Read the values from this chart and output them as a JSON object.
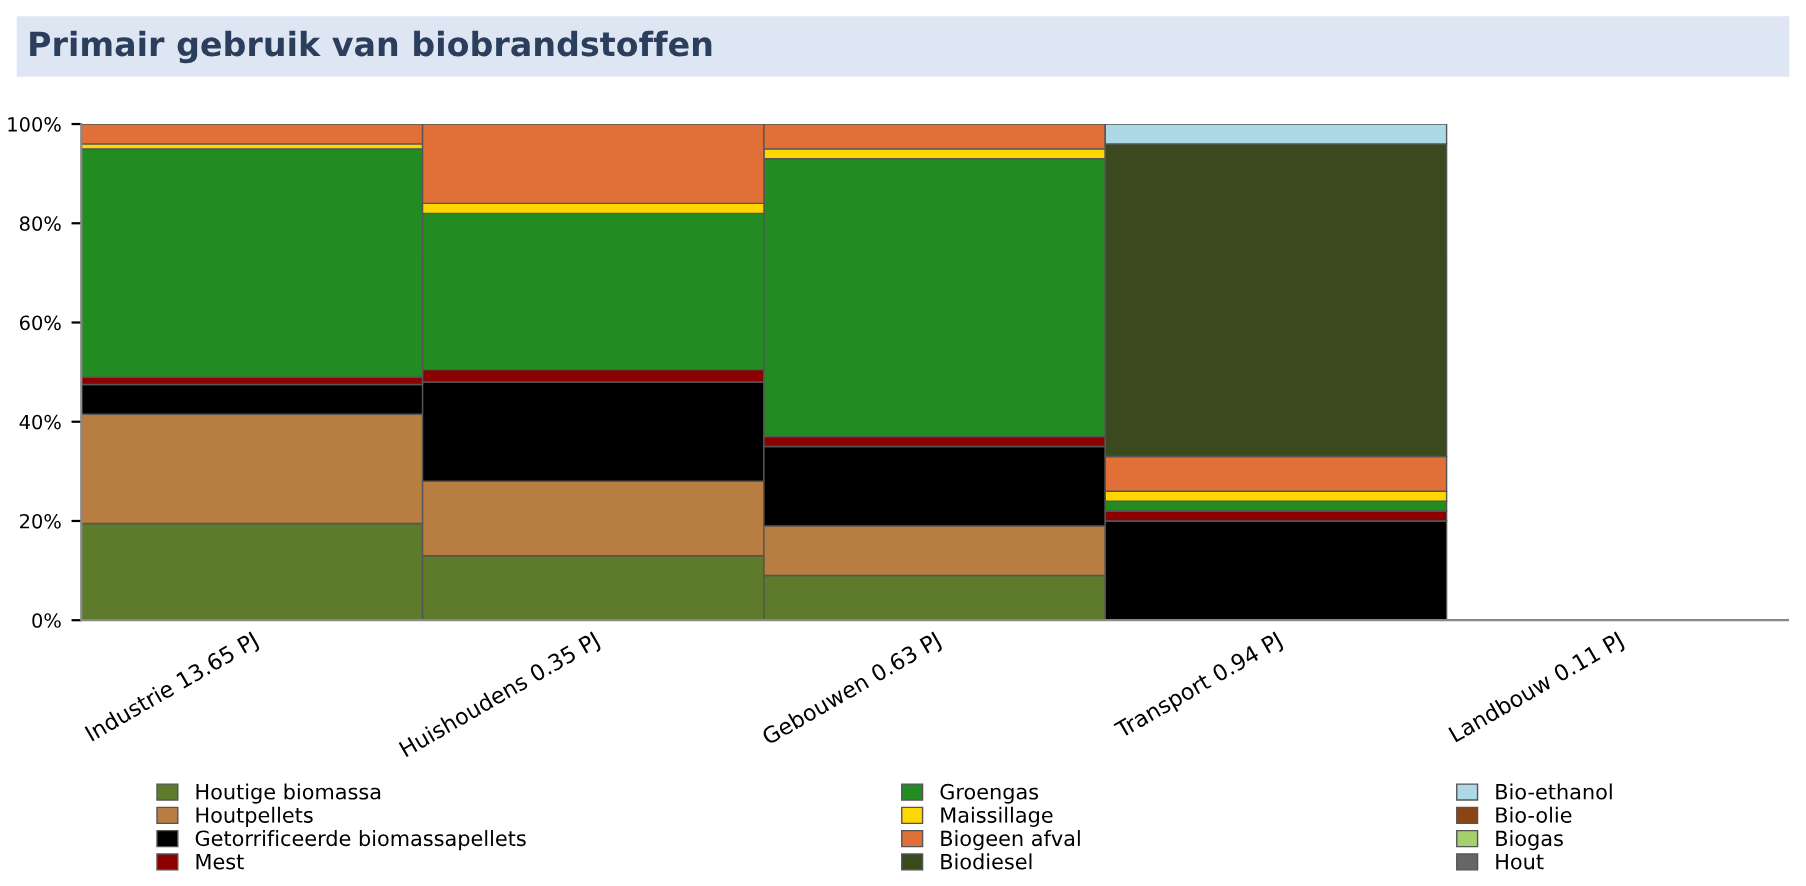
{
  "chart_data": {
    "type": "bar",
    "title": "Primair gebruik van biobrandstoffen",
    "stacked": true,
    "categories": [
      "Industrie 13.65 PJ",
      "Huishoudens 0.35 PJ",
      "Gebouwen 0.63 PJ",
      "Transport 0.94 PJ",
      "Landbouw 0.11 PJ"
    ],
    "series": [
      {
        "name": "Houtige biomassa",
        "color": "#5e7a2b",
        "values": [
          19.5,
          13,
          9,
          null,
          null
        ]
      },
      {
        "name": "Houtpellets",
        "color": "#b87d41",
        "values": [
          22,
          15,
          10,
          null,
          null
        ]
      },
      {
        "name": "Getorrificeerde biomassapellets",
        "color": "#000000",
        "values": [
          6,
          20,
          16,
          20,
          null
        ]
      },
      {
        "name": "Mest",
        "color": "#8b0000",
        "values": [
          1.5,
          2.5,
          2,
          2,
          null
        ]
      },
      {
        "name": "Groengas",
        "color": "#228b22",
        "values": [
          46,
          31.5,
          56,
          2,
          null
        ]
      },
      {
        "name": "Maissillage",
        "color": "#ffd700",
        "values": [
          1,
          2,
          2,
          2,
          null
        ]
      },
      {
        "name": "Biogeen afval",
        "color": "#e07038",
        "values": [
          4,
          16,
          5,
          7,
          null
        ]
      },
      {
        "name": "Biodiesel",
        "color": "#3b4a1e",
        "values": [
          null,
          null,
          null,
          63,
          null
        ]
      },
      {
        "name": "Bio-ethanol",
        "color": "#add8e6",
        "values": [
          null,
          null,
          null,
          4,
          null
        ]
      },
      {
        "name": "Bio-olie",
        "color": "#8b4513",
        "values": [
          null,
          null,
          null,
          null,
          null
        ]
      },
      {
        "name": "Biogas",
        "color": "#a6cf6e",
        "values": [
          null,
          null,
          null,
          null,
          null
        ]
      },
      {
        "name": "Hout",
        "color": "#666666",
        "values": [
          null,
          null,
          null,
          null,
          null
        ]
      }
    ],
    "ylim": [
      0,
      100
    ],
    "yticks": [
      {
        "value": 0,
        "label": "0%"
      },
      {
        "value": 20,
        "label": "20%"
      },
      {
        "value": 40,
        "label": "40%"
      },
      {
        "value": 60,
        "label": "60%"
      },
      {
        "value": 80,
        "label": "80%"
      },
      {
        "value": 100,
        "label": "100%"
      }
    ],
    "grid": false,
    "legend": "bottom"
  }
}
